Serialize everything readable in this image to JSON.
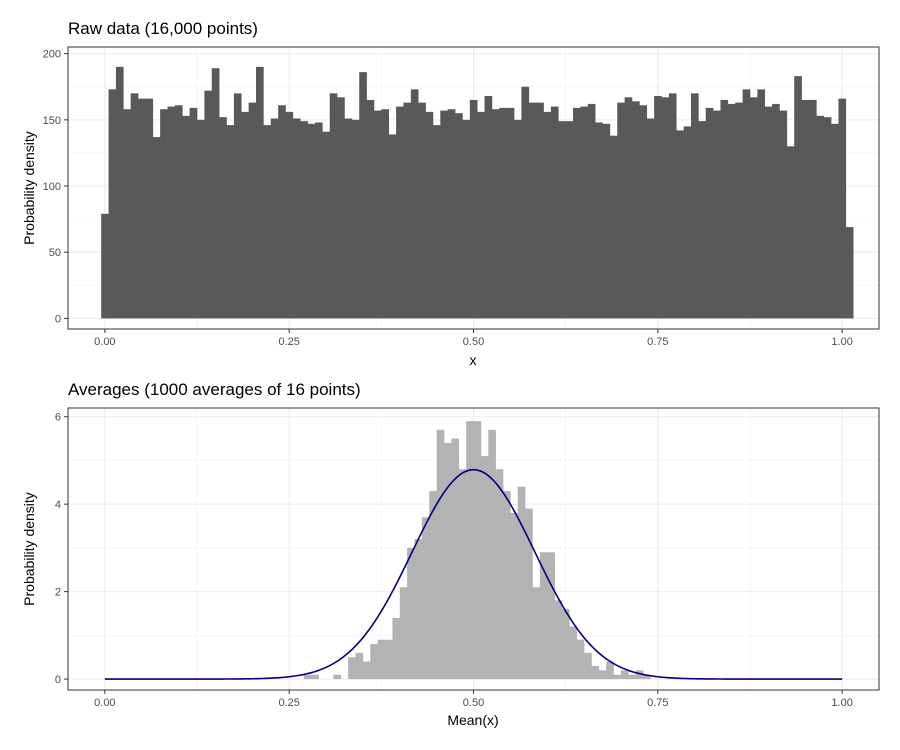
{
  "chart_data": [
    {
      "type": "bar",
      "title": "Raw data (16,000 points)",
      "xlabel": "x",
      "ylabel": "Probability density",
      "xlim": [
        -0.05,
        1.05
      ],
      "ylim": [
        -8,
        205
      ],
      "xticks": [
        0.0,
        0.25,
        0.5,
        0.75,
        1.0
      ],
      "xtick_labels": [
        "0.00",
        "0.25",
        "0.50",
        "0.75",
        "1.00"
      ],
      "yticks": [
        0,
        50,
        100,
        150,
        200
      ],
      "ytick_labels": [
        "0",
        "50",
        "100",
        "150",
        "200"
      ],
      "bar_color": "#595959",
      "grid": true,
      "bin_width": 0.01,
      "bin_start": -0.005,
      "values": [
        79,
        173,
        190,
        158,
        170,
        166,
        166,
        137,
        158,
        160,
        161,
        153,
        159,
        150,
        172,
        189,
        152,
        146,
        170,
        156,
        163,
        190,
        146,
        151,
        161,
        156,
        151,
        149,
        147,
        148,
        141,
        170,
        167,
        151,
        150,
        186,
        165,
        157,
        158,
        139,
        160,
        163,
        173,
        163,
        156,
        146,
        157,
        158,
        155,
        150,
        165,
        156,
        168,
        158,
        159,
        159,
        150,
        175,
        163,
        163,
        156,
        160,
        149,
        149,
        159,
        160,
        162,
        148,
        147,
        138,
        163,
        167,
        164,
        161,
        151,
        168,
        167,
        170,
        142,
        145,
        170,
        149,
        159,
        157,
        165,
        162,
        163,
        173,
        167,
        173,
        160,
        162,
        157,
        130,
        183,
        165,
        165,
        153,
        152,
        147,
        166,
        69
      ]
    },
    {
      "type": "bar",
      "title": "Averages (1000 averages of 16 points)",
      "xlabel": "Mean(x)",
      "ylabel": "Probability density",
      "xlim": [
        -0.05,
        1.05
      ],
      "ylim": [
        -0.25,
        6.2
      ],
      "xticks": [
        0.0,
        0.25,
        0.5,
        0.75,
        1.0
      ],
      "xtick_labels": [
        "0.00",
        "0.25",
        "0.50",
        "0.75",
        "1.00"
      ],
      "yticks": [
        0,
        2,
        4,
        6
      ],
      "ytick_labels": [
        "0",
        "2",
        "4",
        "6"
      ],
      "bar_color": "#b3b3b3",
      "grid": true,
      "bin_width": 0.01,
      "bin_start": 0.0,
      "values": [
        0,
        0,
        0,
        0,
        0,
        0,
        0,
        0,
        0,
        0,
        0,
        0,
        0,
        0,
        0,
        0,
        0,
        0,
        0,
        0,
        0,
        0,
        0,
        0,
        0,
        0,
        0,
        0.1,
        0.1,
        0,
        0,
        0.1,
        0,
        0.5,
        0.6,
        0.4,
        0.8,
        0.9,
        0.9,
        1.4,
        2.1,
        3.0,
        3.2,
        3.7,
        4.3,
        5.7,
        5.4,
        5.5,
        4.8,
        5.9,
        5.9,
        5.1,
        5.7,
        4.8,
        4.3,
        3.8,
        4.4,
        3.9,
        2.1,
        2.9,
        2.9,
        1.8,
        1.6,
        1.2,
        0.9,
        0.6,
        0.3,
        0.2,
        0.4,
        0.1,
        0.2,
        0.1,
        0.2,
        0.1,
        0,
        0,
        0,
        0,
        0,
        0,
        0,
        0,
        0,
        0,
        0,
        0,
        0,
        0,
        0,
        0,
        0,
        0,
        0,
        0,
        0,
        0,
        0,
        0,
        0,
        0,
        0
      ],
      "curve": {
        "name": "",
        "color": "#000080",
        "type": "normal",
        "mean": 0.5,
        "sd": 0.0833,
        "x_range": [
          0.0,
          1.0
        ]
      }
    }
  ]
}
